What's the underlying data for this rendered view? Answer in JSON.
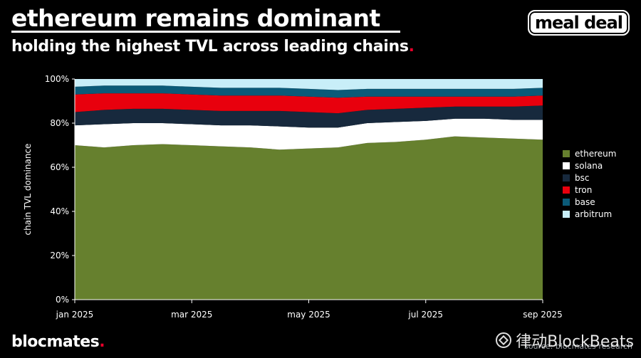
{
  "header": {
    "title": "ethereum remains dominant",
    "subtitle": "holding the highest TVL across leading chains",
    "subtitle_dot": ".",
    "brand": "meal deal"
  },
  "footer": {
    "logo_text": "blocmates",
    "logo_dot": ".",
    "source": "source: blocmates research",
    "watermark": "律动BlockBeats"
  },
  "colors": {
    "ethereum": "#66802e",
    "solana": "#ffffff",
    "bsc": "#17293d",
    "tron": "#e8000d",
    "base": "#0b5a78",
    "arbitrum": "#c8eef8"
  },
  "chart_data": {
    "type": "area",
    "stacked": true,
    "normalized": true,
    "ylabel": "chain TVL dominance",
    "xlabel": "",
    "ylim": [
      0,
      100
    ],
    "y_ticks": [
      "0%",
      "20%",
      "40%",
      "60%",
      "80%",
      "100%"
    ],
    "y_tick_values": [
      0,
      20,
      40,
      60,
      80,
      100
    ],
    "x_ticks": [
      "jan 2025",
      "mar 2025",
      "may 2025",
      "jul 2025",
      "sep 2025"
    ],
    "x_tick_positions": [
      0,
      2,
      4,
      6,
      8
    ],
    "x": [
      0,
      0.5,
      1,
      1.5,
      2,
      2.5,
      3,
      3.5,
      4,
      4.5,
      5,
      5.5,
      6,
      6.5,
      7,
      7.5,
      8
    ],
    "legend_position": "right",
    "series": [
      {
        "name": "ethereum",
        "values": [
          70,
          69,
          70,
          70.5,
          70,
          69.5,
          69,
          68,
          68.5,
          69,
          71,
          71.5,
          72.5,
          74,
          73.5,
          73,
          72.5
        ]
      },
      {
        "name": "solana",
        "values": [
          9,
          10.5,
          10,
          9.5,
          9.5,
          9.5,
          10,
          10.5,
          9.5,
          9,
          9,
          9,
          8.5,
          8,
          8.5,
          8.5,
          9
        ]
      },
      {
        "name": "bsc",
        "values": [
          6,
          6.5,
          6.5,
          6.5,
          6.5,
          6.5,
          6.5,
          7,
          7,
          6.5,
          6,
          6,
          6,
          5.5,
          5.5,
          6,
          6.5
        ]
      },
      {
        "name": "tron",
        "values": [
          8,
          7.5,
          7,
          7,
          7,
          7,
          7,
          7,
          7,
          7,
          6,
          5.5,
          5,
          4.5,
          4.5,
          4.5,
          4.5
        ]
      },
      {
        "name": "base",
        "values": [
          3.5,
          3.5,
          3.5,
          3.5,
          3.5,
          3.5,
          3.5,
          3.5,
          3.5,
          3.5,
          3.5,
          3.5,
          3.5,
          3.5,
          3.5,
          3.5,
          3.5
        ]
      },
      {
        "name": "arbitrum",
        "values": [
          3.5,
          3,
          3,
          3,
          3.5,
          4,
          4,
          4,
          4.5,
          5,
          4.5,
          4.5,
          4.5,
          4.5,
          4.5,
          4.5,
          4
        ]
      }
    ]
  }
}
